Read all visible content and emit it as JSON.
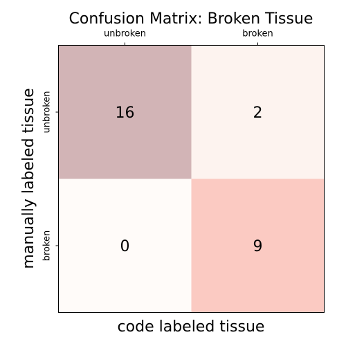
{
  "chart_data": {
    "type": "heatmap",
    "title": "Confusion Matrix: Broken Tissue",
    "xlabel": "code labeled tissue",
    "ylabel": "manually labeled tissue",
    "x_categories": [
      "unbroken",
      "broken"
    ],
    "y_categories": [
      "unbroken",
      "broken"
    ],
    "values": [
      [
        16,
        2
      ],
      [
        0,
        9
      ]
    ],
    "x_ticks_position": "top",
    "colors": {
      "cells": [
        [
          "#d2b4b6",
          "#fdf3ef"
        ],
        [
          "#fffbf9",
          "#fbcac2"
        ]
      ],
      "frame": "#000000"
    }
  }
}
